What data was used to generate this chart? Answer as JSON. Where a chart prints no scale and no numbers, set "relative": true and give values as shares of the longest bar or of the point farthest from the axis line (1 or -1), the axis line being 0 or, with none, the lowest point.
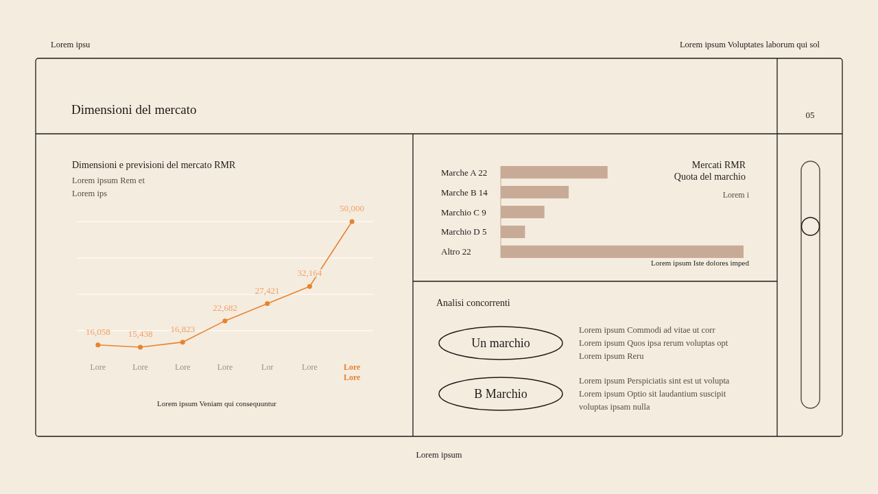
{
  "chart_data": [
    {
      "type": "other",
      "title": "Dimensioni del mercato",
      "annotations": [
        "Lorem ipsu",
        "Lorem ipsum Voluptates laborum qui sol",
        "05",
        "Lorem ipsum"
      ]
    },
    {
      "type": "line",
      "title": "Dimensioni e previsioni del mercato RMR",
      "subtitle": "Lorem ipsum Rem et\nLorem ips",
      "xlabel": "Lorem ipsum Veniam qui consequuntur",
      "categories": [
        "Lore",
        "Lore",
        "Lore",
        "Lore",
        "Lor",
        "Lore",
        "Lore Lore"
      ],
      "values": [
        16058,
        15438,
        16823,
        22682,
        27421,
        32164,
        50000
      ],
      "color": "#e8832e",
      "value_labels": [
        "16,058",
        "15,438",
        "16,823",
        "22,682",
        "27,421",
        "32,164",
        "50,000"
      ],
      "grid": "y",
      "tick_labels": "x",
      "marker": "circle",
      "line_style": "solid"
    },
    {
      "type": "bar",
      "orientation": "horizontal",
      "relative": true,
      "title": "Mercati RMR\nQuota del marchio",
      "subtitle": "Lorem i",
      "annotations": [
        "Lorem ipsum Iste dolores imped"
      ],
      "categories": [
        "Marche A 22",
        "Marche B 14",
        "Marchio C 9",
        "Marchio D 5",
        "Altro 22"
      ],
      "values": [
        0.44,
        0.28,
        0.18,
        0.1,
        1
      ],
      "color": "#c8ab96"
    },
    {
      "type": "other",
      "title": "Analisi concorrenti",
      "annotations": [
        "Un marchio",
        "Lorem ipsum Commodi ad vitae ut corr\nLorem ipsum Quos ipsa rerum voluptas opt\nLorem ipsum Reru",
        "B Marchio",
        "Lorem ipsum Perspiciatis sint est ut volupta\nLorem ipsum Optio sit laudantium suscipit\nvoluptas ipsam nulla"
      ]
    }
  ]
}
